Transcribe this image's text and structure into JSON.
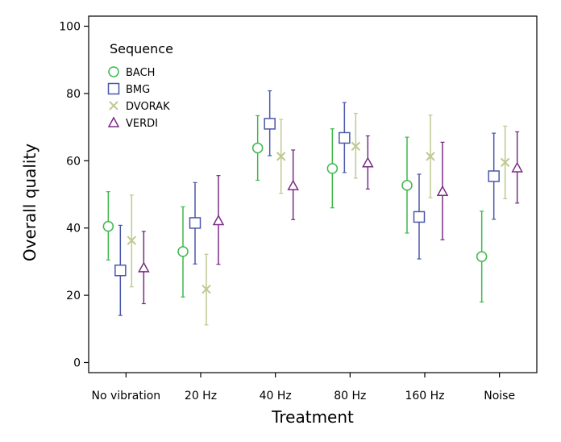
{
  "chart_data": {
    "type": "scatter",
    "xlabel": "Treatment",
    "ylabel": "Overall quality",
    "ylim": [
      -3,
      103
    ],
    "y_ticks": [
      "0",
      "20",
      "40",
      "60",
      "80",
      "100"
    ],
    "categories": [
      "No vibration",
      "20 Hz",
      "40 Hz",
      "80 Hz",
      "160 Hz",
      "Noise"
    ],
    "legend": {
      "title": "Sequence",
      "position": "top-left"
    },
    "grid": false,
    "error_bars": true,
    "series": [
      {
        "name": "BACH",
        "marker": "circle",
        "color": "#3cb84a",
        "values": [
          40.5,
          33,
          63.8,
          57.7,
          52.7,
          31.5
        ],
        "lower": [
          30.5,
          19.5,
          54.2,
          46,
          38.5,
          18
        ],
        "upper": [
          50.8,
          46.3,
          73.4,
          69.5,
          67,
          45
        ]
      },
      {
        "name": "BMG",
        "marker": "square",
        "color": "#4b57a8",
        "values": [
          27.4,
          41.5,
          71,
          66.8,
          43.3,
          55.4
        ],
        "lower": [
          14,
          29.3,
          61.5,
          56.5,
          30.8,
          42.6
        ],
        "upper": [
          40.8,
          53.5,
          80.8,
          77.3,
          56,
          68.2
        ]
      },
      {
        "name": "DVORAK",
        "marker": "x",
        "color": "#bfc991",
        "values": [
          36.3,
          21.8,
          61.3,
          64.3,
          61.3,
          59.5
        ],
        "lower": [
          22.5,
          11.2,
          50.3,
          54.8,
          49,
          48.7
        ],
        "upper": [
          49.8,
          32.2,
          72.3,
          74.1,
          73.6,
          70.3
        ]
      },
      {
        "name": "VERDI",
        "marker": "triangle",
        "color": "#7b2a86",
        "values": [
          28.2,
          42.2,
          52.6,
          59.4,
          50.9,
          57.9
        ],
        "lower": [
          17.5,
          29.2,
          42.5,
          51.6,
          36.5,
          47.4
        ],
        "upper": [
          39,
          55.6,
          63.2,
          67.4,
          65.5,
          68.6
        ]
      }
    ]
  }
}
